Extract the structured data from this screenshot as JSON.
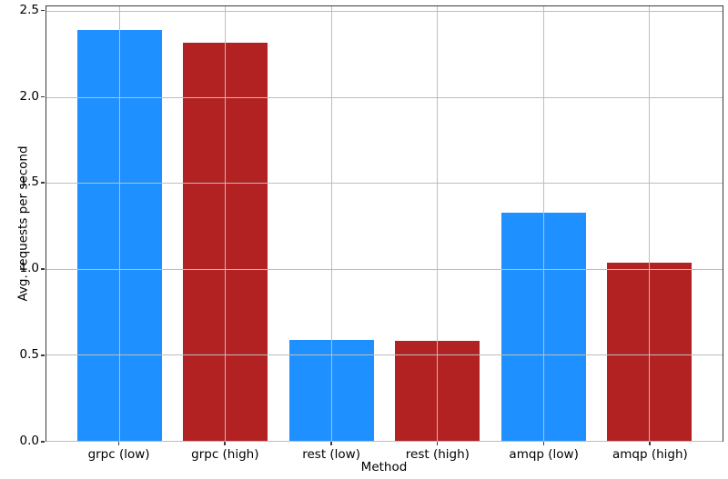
{
  "chart_data": {
    "type": "bar",
    "title": "",
    "xlabel": "Method",
    "ylabel": "Avg. requests per second",
    "categories": [
      "grpc (low)",
      "grpc (high)",
      "rest (low)",
      "rest (high)",
      "amqp (low)",
      "amqp (high)"
    ],
    "values": [
      2.39,
      2.32,
      0.59,
      0.58,
      1.33,
      1.04
    ],
    "bar_colors": [
      "#1e90ff",
      "#b22222",
      "#1e90ff",
      "#b22222",
      "#1e90ff",
      "#b22222"
    ],
    "color_legend": {
      "low_load_color": "#1e90ff",
      "high_load_color": "#b22222"
    },
    "yticks": [
      0.0,
      0.5,
      1.0,
      1.5,
      2.0,
      2.5
    ],
    "ytick_labels": [
      "0.0",
      "0.5",
      "1.0",
      "1.5",
      "2.0",
      "2.5"
    ],
    "ylim": [
      0,
      2.53
    ],
    "grid": true,
    "grid_axis": "both",
    "grid_color": "#bdbdbd",
    "grid_above_bars": true,
    "legend_position": "none",
    "bar_width_frac": 0.8,
    "background_color": "#ffffff",
    "spine_color": "#3a3a3a"
  }
}
